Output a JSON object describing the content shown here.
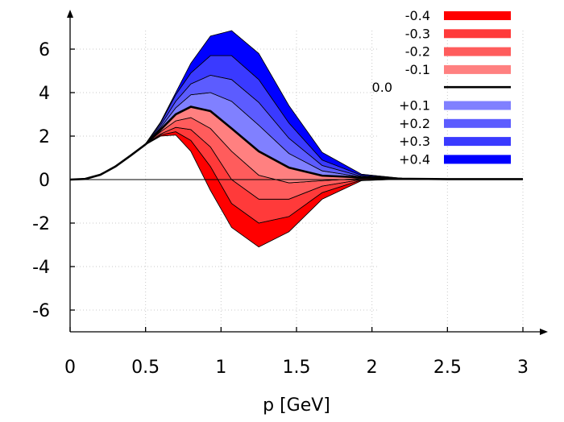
{
  "chart_data": {
    "type": "area",
    "title": "",
    "xlabel": "p [GeV]",
    "ylabel": "",
    "xlim": [
      0,
      3
    ],
    "ylim": [
      -7.1,
      7.4
    ],
    "grid": true,
    "legend_position": "top-right",
    "x_ticks": [
      {
        "value": 0,
        "label": "0"
      },
      {
        "value": 0.5,
        "label": "0.5"
      },
      {
        "value": 1,
        "label": "1"
      },
      {
        "value": 1.5,
        "label": "1.5"
      },
      {
        "value": 2,
        "label": "2"
      },
      {
        "value": 2.5,
        "label": "2.5"
      },
      {
        "value": 3,
        "label": "3"
      }
    ],
    "y_ticks": [
      {
        "value": 6,
        "label": "6"
      },
      {
        "value": 4,
        "label": "4"
      },
      {
        "value": 2,
        "label": "2"
      },
      {
        "value": 0,
        "label": "0"
      },
      {
        "value": -2,
        "label": "-2"
      },
      {
        "value": -4,
        "label": "-4"
      },
      {
        "value": -6,
        "label": "-6"
      }
    ],
    "x": [
      0,
      0.1,
      0.2,
      0.3,
      0.4,
      0.5,
      0.6,
      0.7,
      0.8,
      0.93,
      1.07,
      1.25,
      1.45,
      1.67,
      1.93,
      2.2,
      2.5,
      3.0
    ],
    "series": [
      {
        "name": "-0.4",
        "color": "#ff0000",
        "values": [
          0,
          0.03,
          0.22,
          0.6,
          1.1,
          1.6,
          2.0,
          2.05,
          1.3,
          -0.5,
          -2.2,
          -3.1,
          -2.4,
          -0.9,
          -0.05,
          0.02,
          0.02,
          0.02
        ]
      },
      {
        "name": "-0.3",
        "color": "#ff3a3a",
        "values": [
          0,
          0.03,
          0.22,
          0.6,
          1.1,
          1.6,
          2.05,
          2.2,
          1.8,
          0.6,
          -1.1,
          -2.0,
          -1.7,
          -0.6,
          -0.02,
          0.02,
          0.02,
          0.02
        ]
      },
      {
        "name": "-0.2",
        "color": "#ff5c5c",
        "values": [
          0,
          0.03,
          0.22,
          0.6,
          1.1,
          1.62,
          2.1,
          2.4,
          2.3,
          1.5,
          0.0,
          -0.9,
          -0.9,
          -0.3,
          0.0,
          0.02,
          0.02,
          0.02
        ]
      },
      {
        "name": "-0.1",
        "color": "#ff8080",
        "values": [
          0,
          0.03,
          0.22,
          0.6,
          1.1,
          1.62,
          2.2,
          2.7,
          2.85,
          2.35,
          1.3,
          0.2,
          -0.15,
          -0.05,
          0.05,
          0.02,
          0.02,
          0.02
        ]
      },
      {
        "name": "0.0",
        "color": "#000000",
        "values": [
          0,
          0.03,
          0.22,
          0.6,
          1.1,
          1.62,
          2.3,
          3.0,
          3.35,
          3.15,
          2.35,
          1.3,
          0.55,
          0.18,
          0.1,
          0.04,
          0.02,
          0.02
        ]
      },
      {
        "name": "+0.1",
        "color": "#8080ff",
        "values": [
          0,
          0.03,
          0.22,
          0.6,
          1.1,
          1.62,
          2.4,
          3.3,
          3.9,
          4.0,
          3.6,
          2.5,
          1.2,
          0.4,
          0.12,
          0.04,
          0.02,
          0.02
        ]
      },
      {
        "name": "+0.2",
        "color": "#5c5cff",
        "values": [
          0,
          0.03,
          0.22,
          0.6,
          1.1,
          1.62,
          2.5,
          3.6,
          4.4,
          4.8,
          4.6,
          3.55,
          1.9,
          0.65,
          0.15,
          0.05,
          0.02,
          0.02
        ]
      },
      {
        "name": "+0.3",
        "color": "#3a3aff",
        "values": [
          0,
          0.03,
          0.22,
          0.6,
          1.1,
          1.65,
          2.6,
          3.9,
          4.9,
          5.7,
          5.7,
          4.6,
          2.6,
          0.9,
          0.2,
          0.05,
          0.02,
          0.02
        ]
      },
      {
        "name": "+0.4",
        "color": "#0000ff",
        "values": [
          0,
          0.03,
          0.22,
          0.6,
          1.1,
          1.65,
          2.65,
          4.0,
          5.35,
          6.6,
          6.85,
          5.8,
          3.4,
          1.25,
          0.25,
          0.06,
          0.02,
          0.02
        ]
      }
    ],
    "zero_line": 0
  }
}
